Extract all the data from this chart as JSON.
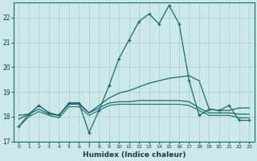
{
  "xlabel": "Humidex (Indice chaleur)",
  "bg_color": "#cce8e8",
  "grid_color": "#aacccc",
  "line_color": "#1a6b6b",
  "xlim": [
    -0.5,
    23.5
  ],
  "ylim": [
    17.0,
    22.6
  ],
  "yticks": [
    17,
    18,
    19,
    20,
    21,
    22
  ],
  "xticks": [
    0,
    1,
    2,
    3,
    4,
    5,
    6,
    7,
    8,
    9,
    10,
    11,
    12,
    13,
    14,
    15,
    16,
    17,
    18,
    19,
    20,
    21,
    22,
    23
  ],
  "line1_x": [
    0,
    1,
    2,
    3,
    4,
    5,
    6,
    7,
    8,
    9,
    10,
    11,
    12,
    13,
    14,
    15,
    16,
    17,
    18,
    19,
    20,
    21,
    22,
    23
  ],
  "line1_y": [
    17.6,
    18.1,
    18.45,
    18.15,
    18.05,
    18.55,
    18.55,
    17.35,
    18.25,
    19.25,
    20.35,
    21.1,
    21.85,
    22.15,
    21.75,
    22.5,
    21.75,
    19.45,
    18.05,
    18.3,
    18.25,
    18.45,
    17.85,
    17.85
  ],
  "line2_x": [
    0,
    1,
    2,
    3,
    4,
    5,
    6,
    7,
    8,
    9,
    10,
    11,
    12,
    13,
    14,
    15,
    16,
    17,
    18,
    19,
    20,
    21,
    22,
    23
  ],
  "line2_y": [
    17.9,
    18.1,
    18.45,
    18.15,
    18.05,
    18.55,
    18.55,
    18.15,
    18.45,
    18.75,
    18.95,
    19.05,
    19.2,
    19.35,
    19.45,
    19.55,
    19.6,
    19.65,
    19.45,
    18.3,
    18.25,
    18.25,
    18.35,
    18.35
  ],
  "line3_x": [
    0,
    1,
    2,
    3,
    4,
    5,
    6,
    7,
    8,
    9,
    10,
    11,
    12,
    13,
    14,
    15,
    16,
    17,
    18,
    19,
    20,
    21,
    22,
    23
  ],
  "line3_y": [
    18.05,
    18.1,
    18.3,
    18.1,
    18.05,
    18.5,
    18.5,
    18.15,
    18.35,
    18.55,
    18.6,
    18.6,
    18.65,
    18.65,
    18.65,
    18.65,
    18.65,
    18.6,
    18.35,
    18.15,
    18.15,
    18.15,
    18.1,
    18.1
  ],
  "line4_x": [
    0,
    1,
    2,
    3,
    4,
    5,
    6,
    7,
    8,
    9,
    10,
    11,
    12,
    13,
    14,
    15,
    16,
    17,
    18,
    19,
    20,
    21,
    22,
    23
  ],
  "line4_y": [
    17.6,
    18.0,
    18.2,
    18.05,
    17.95,
    18.4,
    18.4,
    18.05,
    18.25,
    18.45,
    18.5,
    18.5,
    18.5,
    18.5,
    18.5,
    18.5,
    18.5,
    18.45,
    18.25,
    18.05,
    18.05,
    18.05,
    17.95,
    17.95
  ]
}
